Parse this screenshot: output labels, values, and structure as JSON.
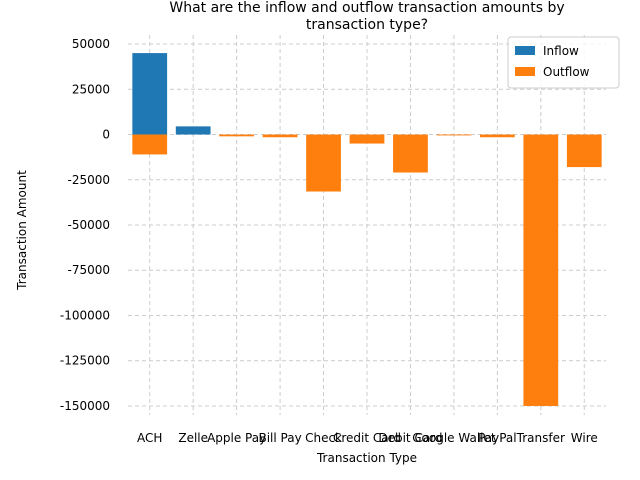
{
  "chart_data": {
    "type": "bar",
    "title_lines": [
      "What are the inflow and outflow transaction amounts by",
      "transaction type?"
    ],
    "xlabel": "Transaction Type",
    "ylabel": "Transaction Amount",
    "categories": [
      "ACH",
      "Zelle",
      "Apple Pay",
      "Bill Pay",
      "Check",
      "Credit Card",
      "Debit Card",
      "Google Wallet",
      "PayPal",
      "Transfer",
      "Wire"
    ],
    "series": [
      {
        "name": "Inflow",
        "color": "#1f77b4",
        "values": [
          45000,
          4500,
          0,
          0,
          0,
          0,
          0,
          0,
          0,
          0,
          0
        ]
      },
      {
        "name": "Outflow",
        "color": "#ff7f0e",
        "values": [
          -11000,
          0,
          -1000,
          -1500,
          -31500,
          -5000,
          -21000,
          -500,
          -1500,
          -150000,
          -18000
        ]
      }
    ],
    "ylim": [
      -155000,
      55000
    ],
    "yticks": [
      50000,
      25000,
      0,
      -25000,
      -50000,
      -75000,
      -100000,
      -125000,
      -150000
    ],
    "grid": true,
    "legend_position": "top-right"
  }
}
